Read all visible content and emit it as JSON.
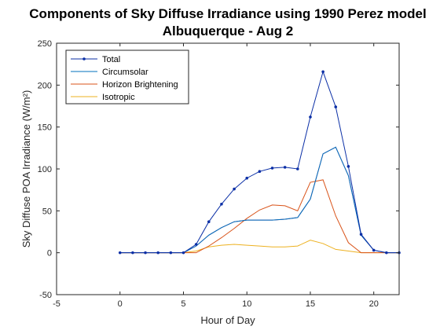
{
  "chart_data": {
    "type": "line",
    "title": "Components of Sky Diffuse Irradiance using 1990 Perez model",
    "subtitle": "Albuquerque - Aug 2",
    "xlabel": "Hour of Day",
    "ylabel": "Sky Diffuse POA Irradiance (W/m²)",
    "xlim": [
      -5,
      22
    ],
    "ylim": [
      -50,
      250
    ],
    "xticks": [
      "-5",
      "0",
      "5",
      "10",
      "15",
      "20"
    ],
    "yticks": [
      "-50",
      "0",
      "50",
      "100",
      "150",
      "200",
      "250"
    ],
    "grid": false,
    "legend_position": "top-left",
    "x": [
      0,
      1,
      2,
      3,
      4,
      5,
      6,
      7,
      8,
      9,
      10,
      11,
      12,
      13,
      14,
      15,
      16,
      17,
      18,
      19,
      20,
      21,
      22
    ],
    "series": [
      {
        "name": "Total",
        "color": "#0b2fa6",
        "marker": "dot",
        "values": [
          0,
          0,
          0,
          0,
          0,
          0,
          10,
          37,
          58,
          76,
          89,
          97,
          101,
          102,
          100,
          162,
          216,
          174,
          103,
          22,
          3,
          0,
          0
        ]
      },
      {
        "name": "Circumsolar",
        "color": "#0072bd",
        "marker": "none",
        "values": [
          0,
          0,
          0,
          0,
          0,
          0,
          8,
          21,
          30,
          37,
          39,
          39,
          39,
          40,
          42,
          64,
          118,
          126,
          92,
          21,
          3,
          0,
          0
        ]
      },
      {
        "name": "Horizon Brightening",
        "color": "#d95319",
        "marker": "none",
        "values": [
          0,
          0,
          0,
          0,
          0,
          0,
          0,
          8,
          18,
          29,
          41,
          51,
          57,
          56,
          50,
          84,
          87,
          44,
          12,
          0,
          0,
          0,
          0
        ]
      },
      {
        "name": "Isotropic",
        "color": "#edb120",
        "marker": "none",
        "values": [
          0,
          0,
          0,
          0,
          0,
          0,
          2,
          7,
          9,
          10,
          9,
          8,
          7,
          7,
          8,
          15,
          11,
          4,
          2,
          0,
          0,
          0,
          0
        ]
      },
      {
        "name": "",
        "color": "#7e2f8e",
        "marker": "none",
        "values": [
          0,
          0,
          0,
          0,
          0,
          0,
          8,
          21,
          30,
          37,
          39,
          39,
          39,
          40,
          42,
          64,
          118,
          126,
          92,
          21,
          3,
          0,
          0
        ]
      }
    ]
  }
}
